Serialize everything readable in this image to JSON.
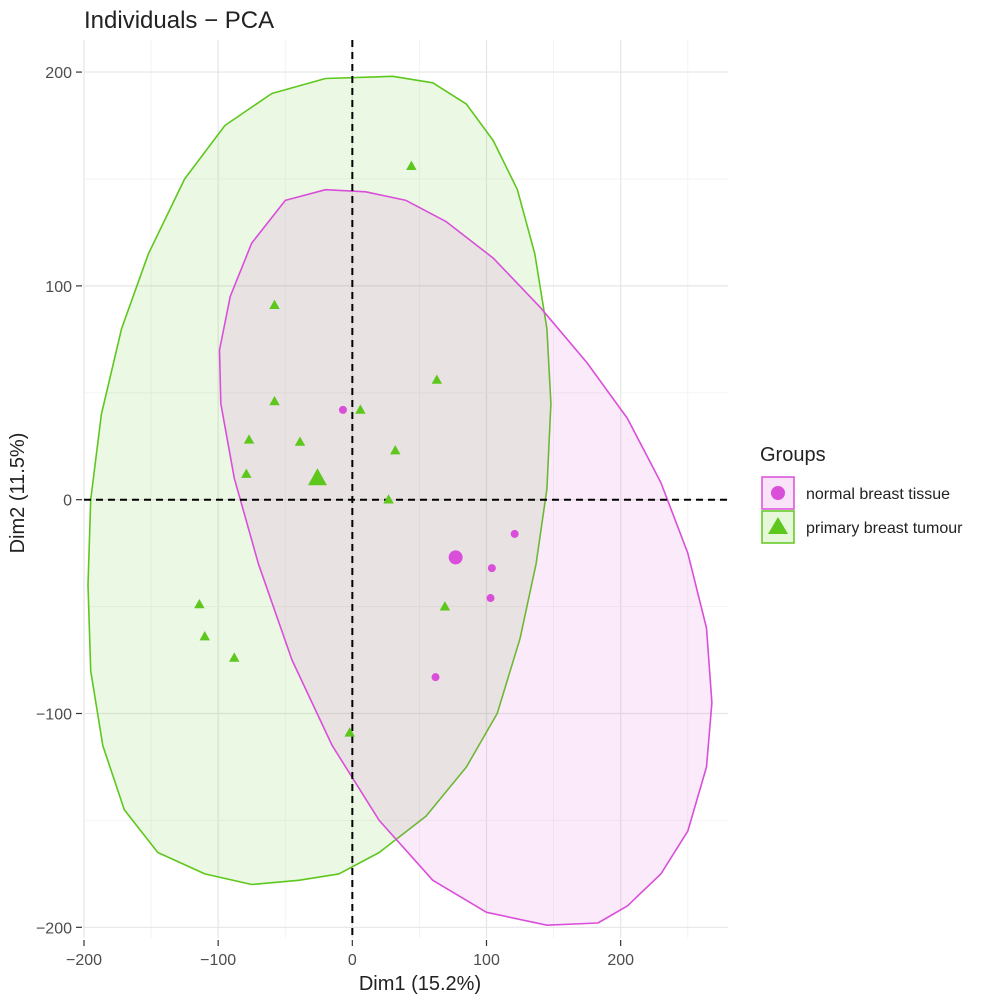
{
  "chart_data": {
    "type": "scatter",
    "title": "Individuals − PCA",
    "xlabel": "Dim1 (15.2%)",
    "ylabel": "Dim2 (11.5%)",
    "xlim": [
      -200,
      280
    ],
    "ylim": [
      -205,
      215
    ],
    "xticks": [
      -200,
      -100,
      0,
      100,
      200
    ],
    "xtick_labels": [
      "−200",
      "−100",
      "0",
      "100",
      "200"
    ],
    "yticks": [
      -200,
      -100,
      0,
      100,
      200
    ],
    "ytick_labels": [
      "−200",
      "−100",
      "0",
      "100",
      "200"
    ],
    "grid": true,
    "reference_lines": {
      "x": 0,
      "y": 0,
      "style": "dashed"
    },
    "legend": {
      "title": "Groups",
      "position": "right"
    },
    "series": [
      {
        "name": "normal breast tissue",
        "color": "#d94fd9",
        "marker": "circle",
        "points": [
          [
            -7,
            42
          ],
          [
            121,
            -16
          ],
          [
            104,
            -32
          ],
          [
            103,
            -46
          ],
          [
            62,
            -83
          ]
        ],
        "centroid": [
          77,
          -27
        ],
        "ellipse": [
          [
            183,
            -198
          ],
          [
            205,
            -190
          ],
          [
            230,
            -175
          ],
          [
            250,
            -155
          ],
          [
            264,
            -125
          ],
          [
            268,
            -95
          ],
          [
            264,
            -60
          ],
          [
            250,
            -25
          ],
          [
            230,
            8
          ],
          [
            205,
            38
          ],
          [
            175,
            64
          ],
          [
            140,
            90
          ],
          [
            105,
            113
          ],
          [
            70,
            130
          ],
          [
            40,
            140
          ],
          [
            10,
            144
          ],
          [
            -20,
            145
          ],
          [
            -50,
            140
          ],
          [
            -75,
            120
          ],
          [
            -91,
            95
          ],
          [
            -99,
            70
          ],
          [
            -98,
            45
          ],
          [
            -88,
            10
          ],
          [
            -70,
            -30
          ],
          [
            -45,
            -75
          ],
          [
            -15,
            -115
          ],
          [
            20,
            -150
          ],
          [
            60,
            -178
          ],
          [
            100,
            -193
          ],
          [
            145,
            -199
          ]
        ]
      },
      {
        "name": "primary breast tumour",
        "color": "#5ec71e",
        "marker": "triangle",
        "points": [
          [
            44,
            156
          ],
          [
            -58,
            91
          ],
          [
            63,
            56
          ],
          [
            -58,
            46
          ],
          [
            6,
            42
          ],
          [
            -77,
            28
          ],
          [
            -39,
            27
          ],
          [
            32,
            23
          ],
          [
            -79,
            12
          ],
          [
            27,
            0
          ],
          [
            -114,
            -49
          ],
          [
            69,
            -50
          ],
          [
            -110,
            -64
          ],
          [
            -88,
            -74
          ],
          [
            -2,
            -109
          ]
        ],
        "centroid": [
          -26,
          10
        ],
        "ellipse": [
          [
            30,
            198
          ],
          [
            60,
            195
          ],
          [
            85,
            185
          ],
          [
            105,
            168
          ],
          [
            123,
            145
          ],
          [
            136,
            115
          ],
          [
            145,
            80
          ],
          [
            148,
            45
          ],
          [
            145,
            5
          ],
          [
            137,
            -30
          ],
          [
            125,
            -65
          ],
          [
            108,
            -100
          ],
          [
            85,
            -125
          ],
          [
            55,
            -148
          ],
          [
            20,
            -165
          ],
          [
            -10,
            -175
          ],
          [
            -40,
            -178
          ],
          [
            -75,
            -180
          ],
          [
            -110,
            -175
          ],
          [
            -145,
            -165
          ],
          [
            -170,
            -145
          ],
          [
            -186,
            -115
          ],
          [
            -195,
            -80
          ],
          [
            -197,
            -40
          ],
          [
            -195,
            0
          ],
          [
            -187,
            40
          ],
          [
            -172,
            80
          ],
          [
            -152,
            115
          ],
          [
            -125,
            150
          ],
          [
            -95,
            175
          ],
          [
            -60,
            190
          ],
          [
            -20,
            197
          ]
        ]
      }
    ]
  }
}
